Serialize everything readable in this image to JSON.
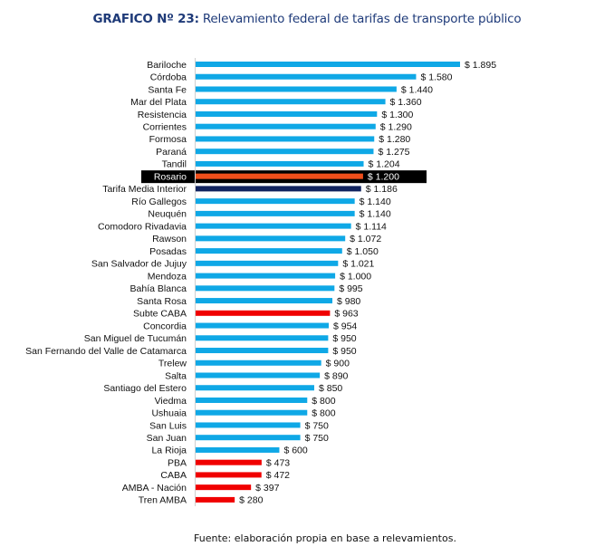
{
  "chart_data": {
    "type": "bar",
    "orientation": "horizontal",
    "title_prefix": "GRAFICO Nº 23:",
    "title": "Relevamiento federal de tarifas de transporte público",
    "xlabel": "",
    "ylabel": "",
    "value_prefix": "$ ",
    "grid": false,
    "legend": "none",
    "xlim": [
      0,
      1895
    ],
    "highlight_row": "Rosario",
    "colors": {
      "default": "#0fa8e6",
      "rosario": "#f04e1a",
      "average": "#11235f",
      "amba": "#f00000",
      "highlight_bg": "#000000"
    },
    "categories": [
      "Bariloche",
      "Córdoba",
      "Santa Fe",
      "Mar del Plata",
      "Resistencia",
      "Corrientes",
      "Formosa",
      "Paraná",
      "Tandil",
      "Rosario",
      "Tarifa Media Interior",
      "Río Gallegos",
      "Neuquén",
      "Comodoro Rivadavia",
      "Rawson",
      "Posadas",
      "San Salvador de Jujuy",
      "Mendoza",
      "Bahía Blanca",
      "Santa Rosa",
      "Subte CABA",
      "Concordia",
      "San Miguel de Tucumán",
      "San Fernando del Valle de Catamarca",
      "Trelew",
      "Salta",
      "Santiago del Estero",
      "Viedma",
      "Ushuaia",
      "San Luis",
      "San Juan",
      "La Rioja",
      "PBA",
      "CABA",
      "AMBA - Nación",
      "Tren AMBA"
    ],
    "values": [
      1895,
      1580,
      1440,
      1360,
      1300,
      1290,
      1280,
      1275,
      1204,
      1200,
      1186,
      1140,
      1140,
      1114,
      1072,
      1050,
      1021,
      1000,
      995,
      980,
      963,
      954,
      950,
      950,
      900,
      890,
      850,
      800,
      800,
      750,
      750,
      600,
      473,
      472,
      397,
      280
    ],
    "labels": [
      "$ 1.895",
      "$ 1.580",
      "$ 1.440",
      "$ 1.360",
      "$ 1.300",
      "$ 1.290",
      "$ 1.280",
      "$ 1.275",
      "$ 1.204",
      "$ 1.200",
      "$ 1.186",
      "$ 1.140",
      "$ 1.140",
      "$ 1.114",
      "$ 1.072",
      "$ 1.050",
      "$ 1.021",
      "$ 1.000",
      "$ 995",
      "$ 980",
      "$ 963",
      "$ 954",
      "$ 950",
      "$ 950",
      "$ 900",
      "$ 890",
      "$ 850",
      "$ 800",
      "$ 800",
      "$ 750",
      "$ 750",
      "$ 600",
      "$ 473",
      "$ 472",
      "$ 397",
      "$ 280"
    ],
    "groups": [
      "default",
      "default",
      "default",
      "default",
      "default",
      "default",
      "default",
      "default",
      "default",
      "rosario",
      "average",
      "default",
      "default",
      "default",
      "default",
      "default",
      "default",
      "default",
      "default",
      "default",
      "amba",
      "default",
      "default",
      "default",
      "default",
      "default",
      "default",
      "default",
      "default",
      "default",
      "default",
      "default",
      "amba",
      "amba",
      "amba",
      "amba"
    ]
  },
  "source": "Fuente: elaboración propia en base a relevamientos."
}
